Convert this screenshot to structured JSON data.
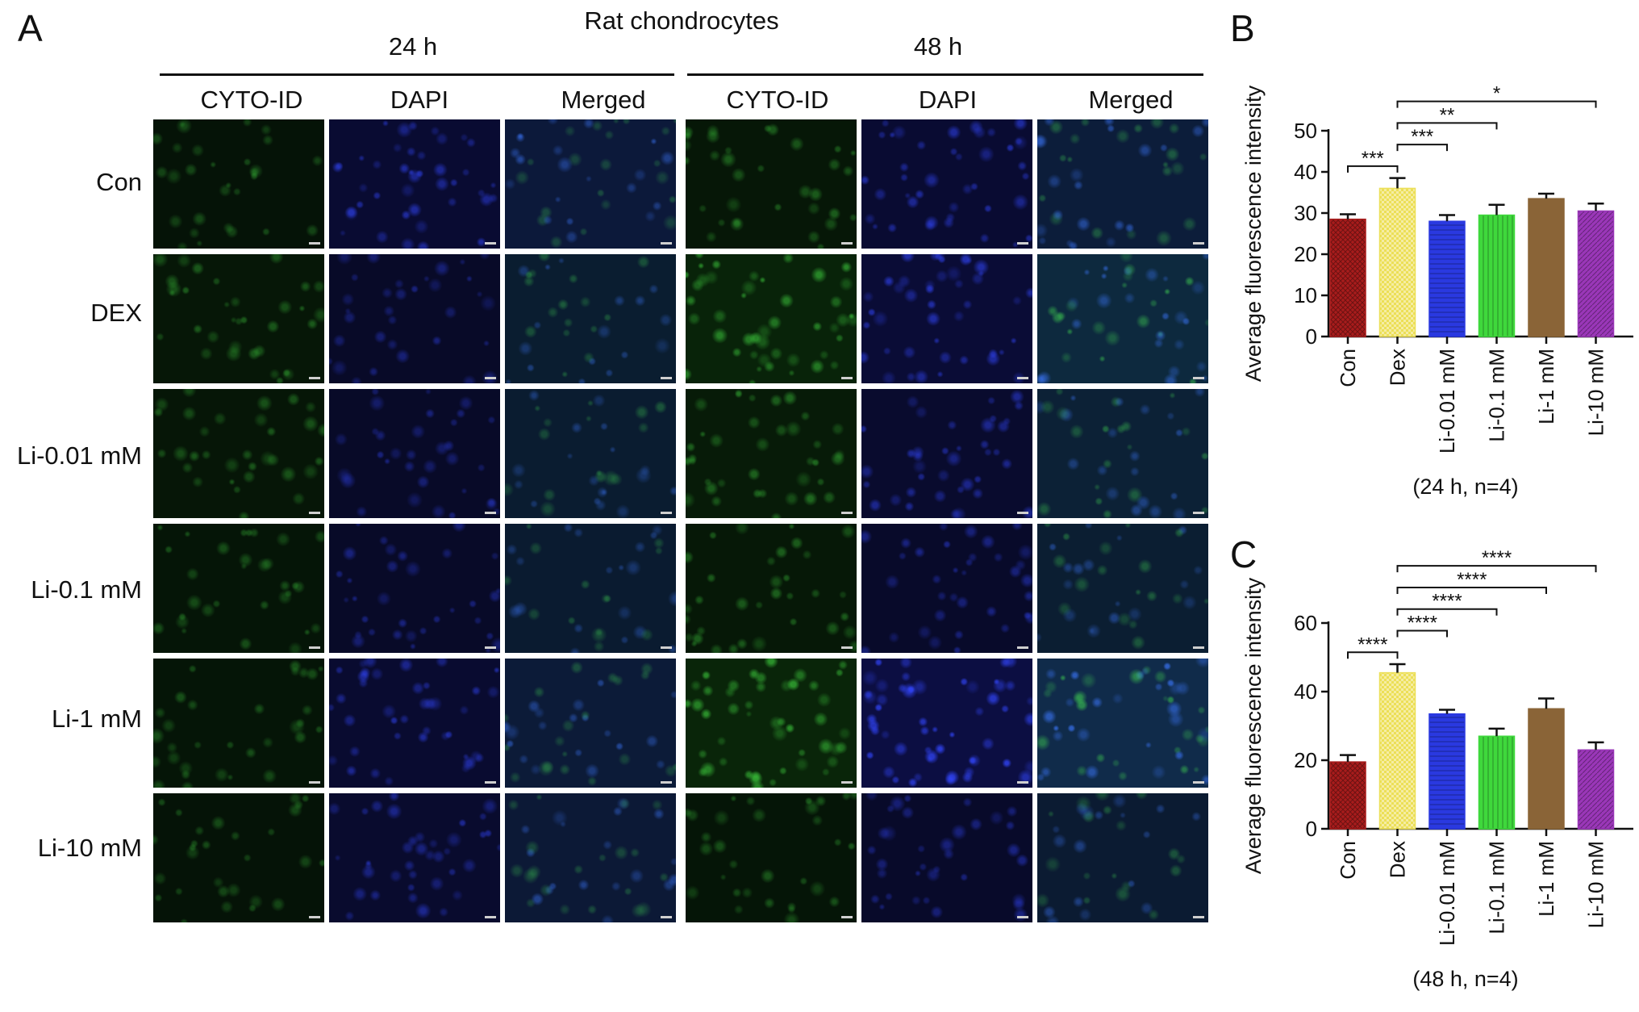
{
  "panelA": {
    "letter": "A",
    "title": "Rat chondrocytes",
    "timepoints": [
      "24 h",
      "48 h"
    ],
    "channels": [
      "CYTO-ID",
      "DAPI",
      "Merged"
    ],
    "rows": [
      "Con",
      "DEX",
      "Li-0.01 mM",
      "Li-0.1 mM",
      "Li-1 mM",
      "Li-10 mM"
    ],
    "green_intensity": [
      [
        0.16,
        0.3,
        0.26,
        0.22,
        0.22,
        0.16
      ],
      [
        0.3,
        0.7,
        0.42,
        0.32,
        0.78,
        0.24
      ]
    ],
    "blue_intensity": [
      [
        0.55,
        0.3,
        0.3,
        0.3,
        0.5,
        0.45
      ],
      [
        0.55,
        0.65,
        0.45,
        0.35,
        0.95,
        0.35
      ]
    ],
    "colors": {
      "green": "#1f9a2a",
      "blue": "#2c3dd8",
      "background": "#05070a"
    }
  },
  "chart_data": [
    {
      "panel": "B",
      "type": "bar",
      "ylabel": "Average fluorescence intensity",
      "xlabel": "(24 h, n=4)",
      "categories": [
        "Con",
        "Dex",
        "Li-0.01 mM",
        "Li-0.1 mM",
        "Li-1 mM",
        "Li-10 mM"
      ],
      "values": [
        28.5,
        36,
        28,
        29.5,
        33.5,
        30.5
      ],
      "errors": [
        1.2,
        2.5,
        1.5,
        2.5,
        1.2,
        1.8
      ],
      "ylim": [
        0,
        50
      ],
      "yticks": [
        "0",
        "10",
        "20",
        "30",
        "40",
        "50"
      ],
      "significance": [
        {
          "from": 0,
          "to": 1,
          "label": "***"
        },
        {
          "from": 1,
          "to": 2,
          "label": "***"
        },
        {
          "from": 1,
          "to": 3,
          "label": "**"
        },
        {
          "from": 1,
          "to": 5,
          "label": "*"
        }
      ],
      "colors": [
        "#a81c1c",
        "#ecdf57",
        "#2a39e0",
        "#3fd83c",
        "#8a6437",
        "#9a37b8"
      ]
    },
    {
      "panel": "C",
      "type": "bar",
      "ylabel": "Average fluorescence intensity",
      "xlabel": "(48 h, n=4)",
      "categories": [
        "Con",
        "Dex",
        "Li-0.01 mM",
        "Li-0.1 mM",
        "Li-1 mM",
        "Li-10 mM"
      ],
      "values": [
        19.5,
        45.5,
        33.5,
        27,
        35,
        23
      ],
      "errors": [
        2,
        2.5,
        1.2,
        2.2,
        3,
        2.2
      ],
      "ylim": [
        0,
        60
      ],
      "yticks": [
        "0",
        "20",
        "40",
        "60"
      ],
      "significance": [
        {
          "from": 0,
          "to": 1,
          "label": "****"
        },
        {
          "from": 1,
          "to": 2,
          "label": "****"
        },
        {
          "from": 1,
          "to": 3,
          "label": "****"
        },
        {
          "from": 1,
          "to": 4,
          "label": "****"
        },
        {
          "from": 1,
          "to": 5,
          "label": "****"
        }
      ],
      "colors": [
        "#a81c1c",
        "#ecdf57",
        "#2a39e0",
        "#3fd83c",
        "#8a6437",
        "#9a37b8"
      ]
    }
  ]
}
